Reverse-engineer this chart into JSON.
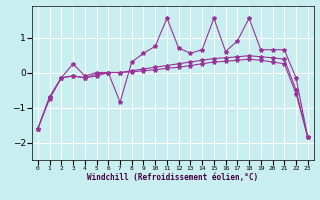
{
  "xlabel": "Windchill (Refroidissement éolien,°C)",
  "background_color": "#c8eef0",
  "line_color": "#993399",
  "grid_color": "#ffffff",
  "x_ticks": [
    0,
    1,
    2,
    3,
    4,
    5,
    6,
    7,
    8,
    9,
    10,
    11,
    12,
    13,
    14,
    15,
    16,
    17,
    18,
    19,
    20,
    21,
    22,
    23
  ],
  "series1": [
    [
      0,
      -1.6
    ],
    [
      1,
      -0.75
    ],
    [
      2,
      -0.15
    ],
    [
      3,
      0.25
    ],
    [
      4,
      -0.1
    ],
    [
      5,
      0.0
    ],
    [
      6,
      0.0
    ],
    [
      7,
      -0.85
    ],
    [
      8,
      0.3
    ],
    [
      9,
      0.55
    ],
    [
      10,
      0.75
    ],
    [
      11,
      1.55
    ],
    [
      12,
      0.7
    ],
    [
      13,
      0.55
    ],
    [
      14,
      0.65
    ],
    [
      15,
      1.55
    ],
    [
      16,
      0.6
    ],
    [
      17,
      0.9
    ],
    [
      18,
      1.55
    ],
    [
      19,
      0.65
    ],
    [
      20,
      0.65
    ],
    [
      21,
      0.65
    ],
    [
      22,
      -0.15
    ],
    [
      23,
      -1.85
    ]
  ],
  "series2": [
    [
      0,
      -1.6
    ],
    [
      1,
      -0.7
    ],
    [
      2,
      -0.15
    ],
    [
      3,
      -0.1
    ],
    [
      4,
      -0.15
    ],
    [
      5,
      -0.05
    ],
    [
      6,
      0.0
    ],
    [
      7,
      0.0
    ],
    [
      8,
      0.05
    ],
    [
      9,
      0.1
    ],
    [
      10,
      0.15
    ],
    [
      11,
      0.2
    ],
    [
      12,
      0.25
    ],
    [
      13,
      0.3
    ],
    [
      14,
      0.35
    ],
    [
      15,
      0.4
    ],
    [
      16,
      0.42
    ],
    [
      17,
      0.45
    ],
    [
      18,
      0.48
    ],
    [
      19,
      0.45
    ],
    [
      20,
      0.42
    ],
    [
      21,
      0.38
    ],
    [
      22,
      -0.5
    ],
    [
      23,
      -1.85
    ]
  ],
  "series3": [
    [
      0,
      -1.6
    ],
    [
      1,
      -0.7
    ],
    [
      2,
      -0.15
    ],
    [
      3,
      -0.1
    ],
    [
      4,
      -0.15
    ],
    [
      5,
      -0.1
    ],
    [
      6,
      0.0
    ],
    [
      7,
      0.0
    ],
    [
      8,
      0.02
    ],
    [
      9,
      0.05
    ],
    [
      10,
      0.08
    ],
    [
      11,
      0.12
    ],
    [
      12,
      0.15
    ],
    [
      13,
      0.2
    ],
    [
      14,
      0.25
    ],
    [
      15,
      0.3
    ],
    [
      16,
      0.32
    ],
    [
      17,
      0.35
    ],
    [
      18,
      0.38
    ],
    [
      19,
      0.35
    ],
    [
      20,
      0.3
    ],
    [
      21,
      0.25
    ],
    [
      22,
      -0.6
    ],
    [
      23,
      -1.85
    ]
  ],
  "ylim": [
    -2.5,
    1.9
  ],
  "yticks": [
    -2,
    -1,
    0,
    1
  ]
}
